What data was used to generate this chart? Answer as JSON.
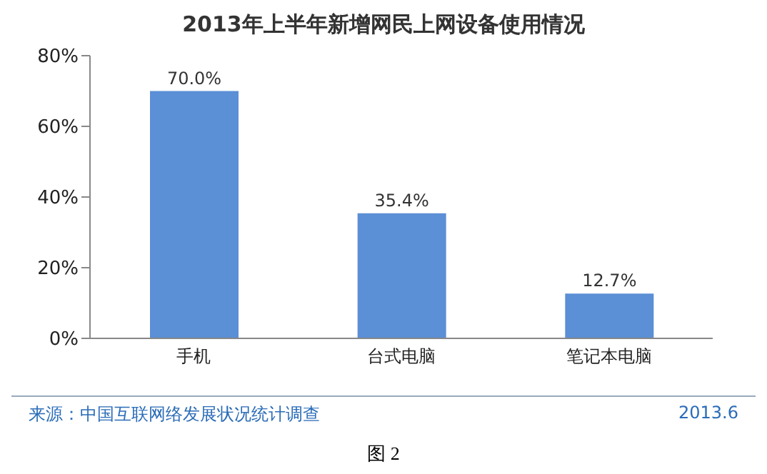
{
  "chart_data": {
    "type": "bar",
    "title": "2013年上半年新增网民上网设备使用情况",
    "categories": [
      "手机",
      "台式电脑",
      "笔记本电脑"
    ],
    "values": [
      70.0,
      35.4,
      12.7
    ],
    "value_labels": [
      "70.0%",
      "35.4%",
      "12.7%"
    ],
    "color": "#5b8fd6",
    "ylim": [
      0,
      80
    ],
    "yticks": [
      {
        "value": 0,
        "label": "0%"
      },
      {
        "value": 20,
        "label": "20%"
      },
      {
        "value": 40,
        "label": "40%"
      },
      {
        "value": 60,
        "label": "60%"
      },
      {
        "value": 80,
        "label": "80%"
      }
    ],
    "grid": false,
    "annotations": [
      "来源：中国互联网络发展状况统计调查",
      "2013.6",
      "图 2"
    ]
  }
}
